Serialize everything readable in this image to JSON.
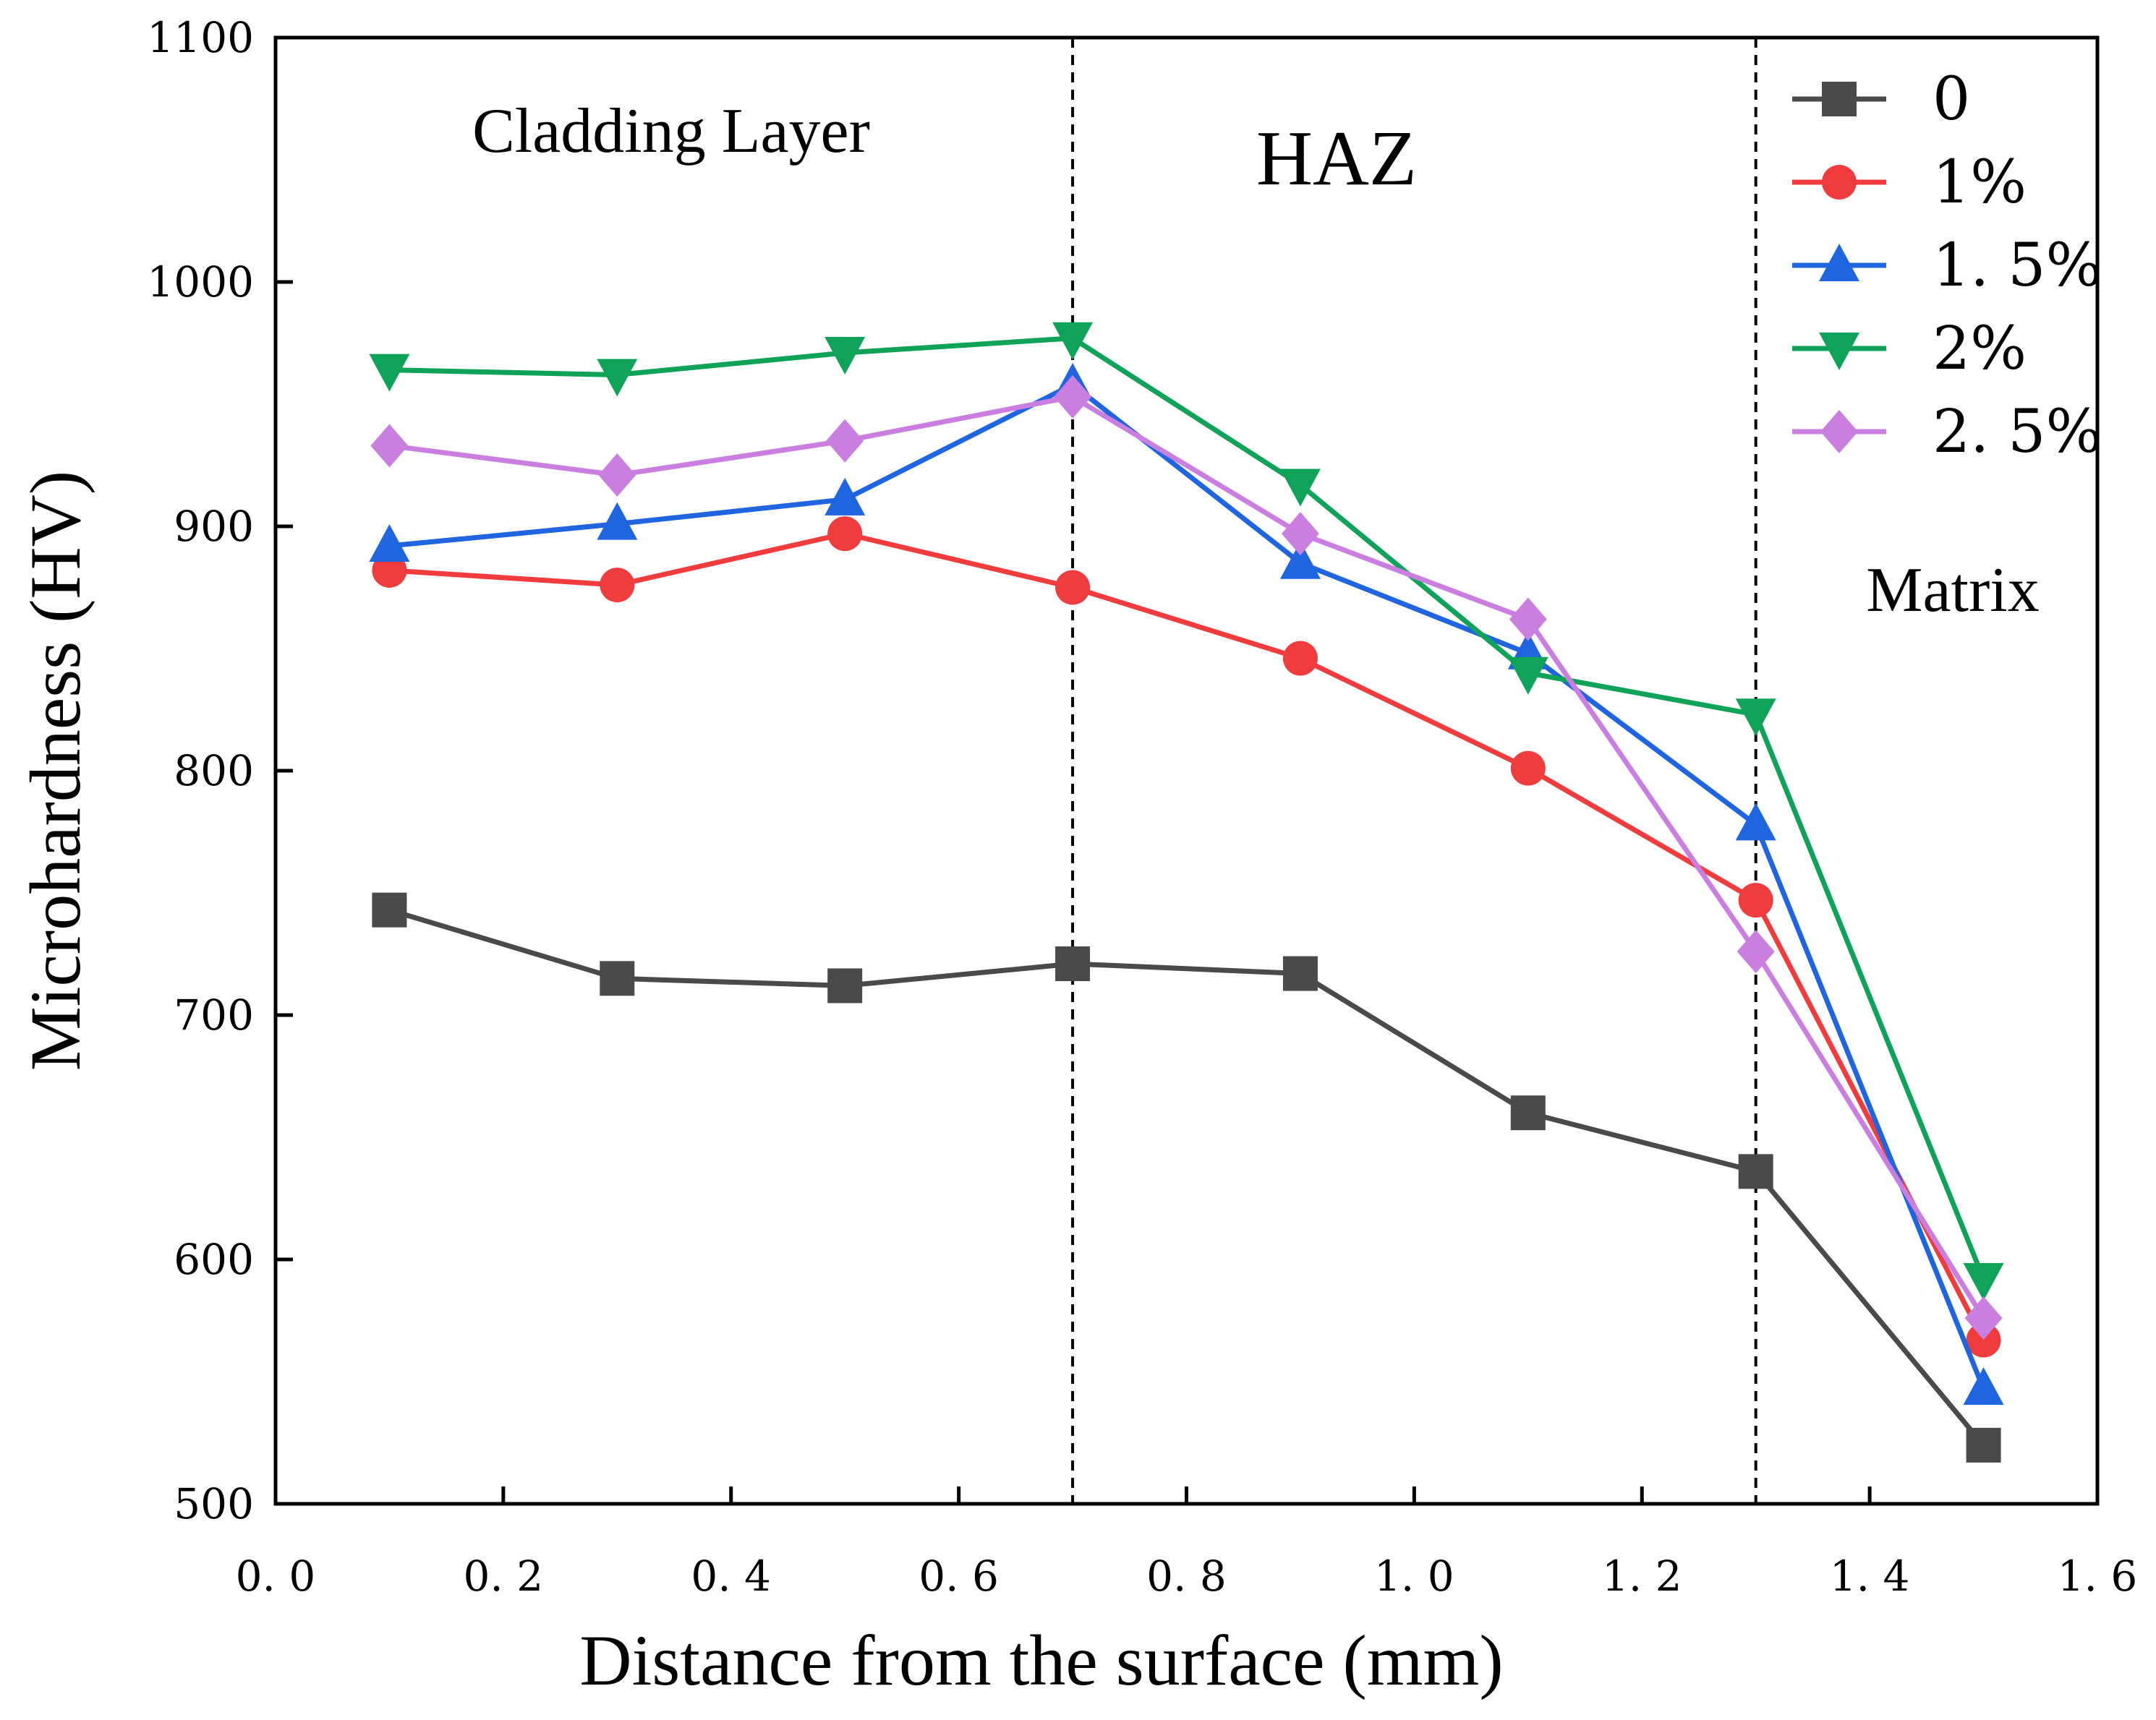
{
  "chart_data": {
    "type": "line",
    "xlabel": "Distance from the surface (mm)",
    "ylabel": "Microhardness  (HV)",
    "xlim": [
      0.0,
      1.6
    ],
    "ylim": [
      500,
      1100
    ],
    "xticks": [
      0.0,
      0.2,
      0.4,
      0.6,
      0.8,
      1.0,
      1.2,
      1.4,
      1.6
    ],
    "xtick_labels": [
      "0. 0",
      "0. 2",
      "0. 4",
      "0. 6",
      "0. 8",
      "1. 0",
      "1. 2",
      "1. 4",
      "1. 6"
    ],
    "yticks": [
      500,
      600,
      700,
      800,
      900,
      1000,
      1100
    ],
    "ytick_labels": [
      "500",
      "600",
      "700",
      "800",
      "900",
      "1000",
      "1100"
    ],
    "grid": false,
    "legend_position": "top-right",
    "x": [
      0.1,
      0.3,
      0.5,
      0.7,
      0.9,
      1.1,
      1.3,
      1.5
    ],
    "series": [
      {
        "name": "0",
        "marker": "square",
        "color": "#4a4a4a",
        "values": [
          743,
          715,
          712,
          721,
          717,
          660,
          636,
          524
        ]
      },
      {
        "name": "1%",
        "marker": "circle",
        "color": "#f03c3c",
        "values": [
          882,
          876,
          897,
          875,
          846,
          801,
          747,
          567
        ]
      },
      {
        "name": "1. 5%",
        "marker": "triangle-up",
        "color": "#1f65e0",
        "values": [
          892,
          901,
          911,
          958,
          885,
          848,
          778,
          547
        ]
      },
      {
        "name": "2%",
        "marker": "triangle-down",
        "color": "#0fa35a",
        "values": [
          964,
          962,
          971,
          977,
          917,
          840,
          823,
          592
        ]
      },
      {
        "name": "2. 5%",
        "marker": "diamond",
        "color": "#c97ee0",
        "values": [
          933,
          921,
          935,
          953,
          897,
          862,
          726,
          576
        ]
      }
    ],
    "reference_lines": [
      {
        "axis": "x",
        "value": 0.7,
        "style": "dashed"
      },
      {
        "axis": "x",
        "value": 1.3,
        "style": "dashed"
      }
    ],
    "annotations": [
      {
        "text": "Cladding  Layer",
        "x": 0.35,
        "y": 1066
      },
      {
        "text": "HAZ",
        "x": 0.94,
        "y": 1054
      },
      {
        "text": "Matrix",
        "x": 1.46,
        "y": 876
      }
    ]
  }
}
